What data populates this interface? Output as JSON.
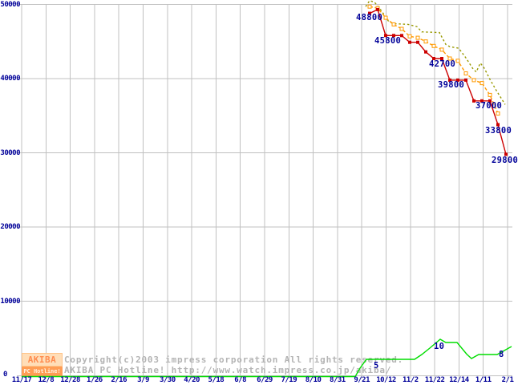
{
  "colors": {
    "red_series": "#cc0000",
    "orange_series": "#ff9900",
    "olive_series": "#999900",
    "green_series": "#00dd00",
    "axis_label": "#000099",
    "gridline": "#c0c0c0",
    "watermark_text": "#b4b4b4",
    "logo_cream": "#ffdeb8",
    "logo_orange": "#ff9d55"
  },
  "watermark": {
    "logo_top": "AKIBA",
    "logo_bottom": "PC Hotline!",
    "copyright": "Copyright(c)2003 impress corporation All rights reserved.",
    "site_line": "AKIBA PC Hotline!  http://www.watch.impress.co.jp/akiba/"
  },
  "chart_data": {
    "type": "line",
    "title": "",
    "xlabel": "",
    "ylabel": "",
    "ylim": [
      0,
      50000
    ],
    "grid": true,
    "legend": "none",
    "y_tick_labels": [
      "0",
      "10000",
      "20000",
      "30000",
      "40000",
      "50000"
    ],
    "x_tick_labels": [
      "11/17",
      "12/8",
      "12/28",
      "1/26",
      "2/16",
      "3/9",
      "3/30",
      "4/20",
      "5/18",
      "6/8",
      "6/29",
      "7/19",
      "8/10",
      "8/31",
      "9/21",
      "10/12",
      "11/2",
      "11/22",
      "12/14",
      "1/11",
      "2/1"
    ],
    "series": [
      {
        "name": "olive",
        "color": "#999900",
        "style": "dashed",
        "markers": false,
        "unit": "yen",
        "points": [
          [
            456,
            49700
          ],
          [
            461,
            50500
          ],
          [
            467,
            50300
          ],
          [
            476,
            49100
          ],
          [
            484,
            47800
          ],
          [
            490,
            47400
          ],
          [
            509,
            47300
          ],
          [
            520,
            47000
          ],
          [
            526,
            46300
          ],
          [
            548,
            46200
          ],
          [
            556,
            44600
          ],
          [
            561,
            44300
          ],
          [
            572,
            44100
          ],
          [
            581,
            42800
          ],
          [
            590,
            41300
          ],
          [
            594,
            40900
          ],
          [
            599,
            42100
          ],
          [
            604,
            41400
          ],
          [
            611,
            39900
          ],
          [
            619,
            38400
          ],
          [
            630,
            36500
          ]
        ]
      },
      {
        "name": "orange",
        "color": "#ff9900",
        "style": "dashed",
        "markers": true,
        "unit": "yen",
        "points": [
          [
            461,
            49700
          ],
          [
            471,
            49500
          ],
          [
            481,
            48200
          ],
          [
            491,
            47300
          ],
          [
            501,
            46700
          ],
          [
            511,
            45700
          ],
          [
            521,
            45500
          ],
          [
            531,
            45000
          ],
          [
            541,
            44400
          ],
          [
            551,
            43900
          ],
          [
            561,
            42700
          ],
          [
            571,
            42400
          ],
          [
            581,
            40700
          ],
          [
            591,
            39800
          ],
          [
            601,
            39400
          ],
          [
            611,
            37800
          ],
          [
            621,
            35300
          ]
        ]
      },
      {
        "name": "red",
        "color": "#cc0000",
        "style": "solid",
        "markers": true,
        "unit": "yen",
        "points": [
          [
            461,
            48800
          ],
          [
            471,
            49300
          ],
          [
            481,
            45800
          ],
          [
            491,
            45800
          ],
          [
            501,
            45800
          ],
          [
            511,
            44900
          ],
          [
            521,
            44900
          ],
          [
            531,
            43600
          ],
          [
            541,
            42700
          ],
          [
            551,
            42700
          ],
          [
            561,
            39800
          ],
          [
            571,
            39800
          ],
          [
            581,
            39800
          ],
          [
            591,
            37000
          ],
          [
            601,
            37000
          ],
          [
            611,
            37000
          ],
          [
            621,
            33800
          ],
          [
            631,
            29800
          ]
        ]
      },
      {
        "name": "green",
        "color": "#00dd00",
        "style": "solid",
        "markers": false,
        "unit": "shops",
        "points": [
          [
            27,
            0.7
          ],
          [
            443,
            0.7
          ],
          [
            449,
            2.8
          ],
          [
            457,
            5
          ],
          [
            517,
            5
          ],
          [
            526,
            6.2
          ],
          [
            536,
            7.8
          ],
          [
            549,
            10
          ],
          [
            556,
            9.2
          ],
          [
            570,
            9.2
          ],
          [
            582,
            6.3
          ],
          [
            588,
            5.2
          ],
          [
            597,
            6.2
          ],
          [
            620,
            6.2
          ],
          [
            638,
            8.2
          ]
        ]
      }
    ],
    "annotations": [
      {
        "text": "48800",
        "x": 444,
        "y": 27
      },
      {
        "text": "45800",
        "x": 467,
        "y": 56
      },
      {
        "text": "42700",
        "x": 535,
        "y": 85
      },
      {
        "text": "39800",
        "x": 546,
        "y": 111
      },
      {
        "text": "37000",
        "x": 593,
        "y": 137
      },
      {
        "text": "33800",
        "x": 605,
        "y": 168
      },
      {
        "text": "29800",
        "x": 613,
        "y": 205
      },
      {
        "text": "5",
        "x": 466,
        "y": 461
      },
      {
        "text": "10",
        "x": 541,
        "y": 437
      },
      {
        "text": "8",
        "x": 622,
        "y": 447
      }
    ]
  }
}
